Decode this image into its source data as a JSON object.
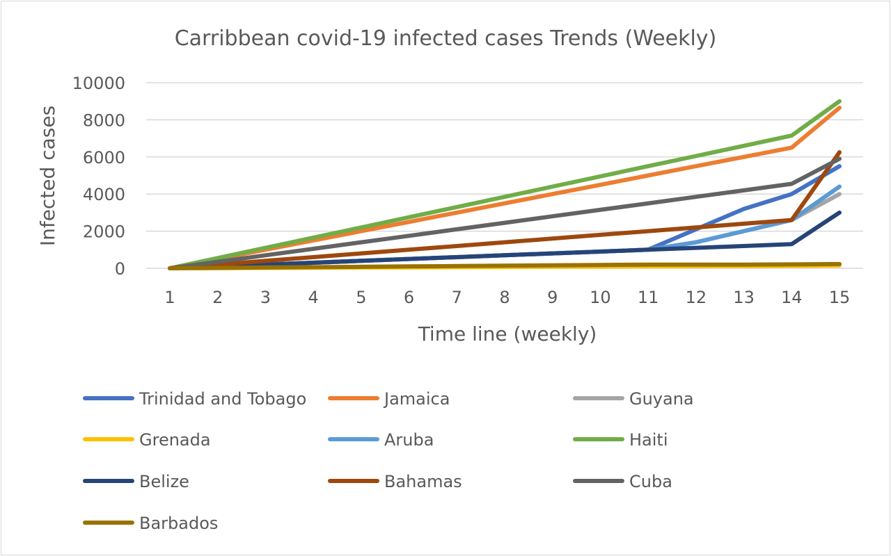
{
  "chart_data": {
    "type": "line",
    "title": "Carribbean covid-19 infected cases Trends (Weekly)",
    "xlabel": "Time line (weekly)",
    "ylabel": "Infected cases",
    "x": [
      "1",
      "2",
      "3",
      "4",
      "5",
      "6",
      "7",
      "8",
      "9",
      "10",
      "11",
      "12",
      "13",
      "14",
      "15"
    ],
    "ylim": [
      0,
      10000
    ],
    "yticks": [
      "0",
      "2000",
      "4000",
      "6000",
      "8000",
      "10000"
    ],
    "grid": true,
    "legend_position": "bottom",
    "series": [
      {
        "name": "Trinidad and Tobago",
        "color": "#4472C4",
        "values": [
          0,
          100,
          200,
          300,
          400,
          500,
          600,
          700,
          800,
          900,
          1000,
          2100,
          3200,
          4000,
          5500
        ]
      },
      {
        "name": "Jamaica",
        "color": "#ED7D31",
        "values": [
          0,
          500,
          1000,
          1500,
          2000,
          2500,
          3000,
          3500,
          4000,
          4500,
          5000,
          5500,
          6000,
          6500,
          8650
        ]
      },
      {
        "name": "Guyana",
        "color": "#A5A5A5",
        "values": [
          0,
          100,
          200,
          300,
          400,
          500,
          600,
          700,
          800,
          900,
          1000,
          1400,
          2000,
          2600,
          4000
        ]
      },
      {
        "name": "Grenada",
        "color": "#FFC000",
        "values": [
          0,
          10,
          20,
          30,
          40,
          50,
          60,
          70,
          80,
          90,
          100,
          110,
          120,
          130,
          150
        ]
      },
      {
        "name": "Aruba",
        "color": "#5B9BD5",
        "values": [
          0,
          100,
          200,
          300,
          400,
          500,
          600,
          700,
          800,
          900,
          1000,
          1400,
          2000,
          2600,
          4400
        ]
      },
      {
        "name": "Haiti",
        "color": "#70AD47",
        "values": [
          0,
          550,
          1100,
          1650,
          2200,
          2750,
          3300,
          3850,
          4400,
          4950,
          5500,
          6050,
          6600,
          7150,
          9000
        ]
      },
      {
        "name": "Belize",
        "color": "#264478",
        "values": [
          0,
          100,
          200,
          300,
          400,
          500,
          600,
          700,
          800,
          900,
          1000,
          1100,
          1200,
          1300,
          3000
        ]
      },
      {
        "name": "Bahamas",
        "color": "#9E480E",
        "values": [
          0,
          200,
          400,
          600,
          800,
          1000,
          1200,
          1400,
          1600,
          1800,
          2000,
          2200,
          2400,
          2600,
          6250
        ]
      },
      {
        "name": "Cuba",
        "color": "#636363",
        "values": [
          0,
          350,
          700,
          1050,
          1400,
          1750,
          2100,
          2450,
          2800,
          3150,
          3500,
          3850,
          4200,
          4550,
          5900
        ]
      },
      {
        "name": "Barbados",
        "color": "#997300",
        "values": [
          0,
          20,
          40,
          60,
          80,
          100,
          120,
          140,
          160,
          180,
          200,
          200,
          200,
          210,
          230
        ]
      }
    ]
  }
}
